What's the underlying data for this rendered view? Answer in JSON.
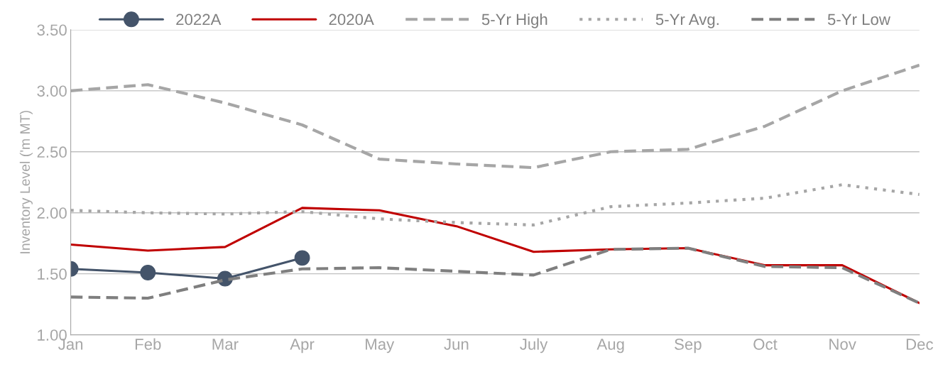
{
  "chart_data": {
    "type": "line",
    "ylabel": "Inventory Level ('m MT)",
    "categories": [
      "Jan",
      "Feb",
      "Mar",
      "Apr",
      "May",
      "Jun",
      "July",
      "Aug",
      "Sep",
      "Oct",
      "Nov",
      "Dec"
    ],
    "series": [
      {
        "name": "2022A",
        "color": "#44546a",
        "marker": "circle",
        "line_style": "solid",
        "values": [
          1.54,
          1.51,
          1.46,
          1.63,
          null,
          null,
          null,
          null,
          null,
          null,
          null,
          null
        ]
      },
      {
        "name": "2020A",
        "color": "#c00000",
        "line_style": "solid",
        "values": [
          1.74,
          1.69,
          1.72,
          2.04,
          2.02,
          1.89,
          1.68,
          1.7,
          1.71,
          1.57,
          1.57,
          1.26
        ]
      },
      {
        "name": "5-Yr High",
        "color": "#a6a6a6",
        "line_style": "dashed",
        "values": [
          3.0,
          3.05,
          2.9,
          2.72,
          2.44,
          2.4,
          2.37,
          2.5,
          2.52,
          2.71,
          3.0,
          3.21
        ]
      },
      {
        "name": "5-Yr Avg.",
        "color": "#a6a6a6",
        "line_style": "dotted",
        "values": [
          2.02,
          2.0,
          1.99,
          2.01,
          1.95,
          1.92,
          1.9,
          2.05,
          2.08,
          2.12,
          2.23,
          2.15
        ]
      },
      {
        "name": "5-Yr Low",
        "color": "#7f7f7f",
        "line_style": "dashed",
        "values": [
          1.31,
          1.3,
          1.45,
          1.54,
          1.55,
          1.52,
          1.49,
          1.7,
          1.71,
          1.56,
          1.55,
          1.26
        ]
      }
    ],
    "ylim": [
      1.0,
      3.5
    ],
    "yticks": [
      {
        "value": 1.0,
        "label": "1.00"
      },
      {
        "value": 1.5,
        "label": "1.50"
      },
      {
        "value": 2.0,
        "label": "2.00"
      },
      {
        "value": 2.5,
        "label": "2.50"
      },
      {
        "value": 3.0,
        "label": "3.00"
      },
      {
        "value": 3.5,
        "label": "3.50"
      }
    ],
    "grid": "y",
    "legend": "top"
  }
}
